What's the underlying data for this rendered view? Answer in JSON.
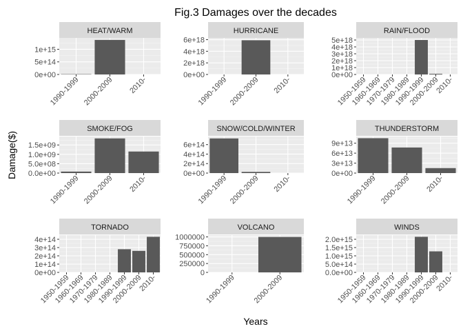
{
  "chart_data": {
    "type": "bar",
    "title": "Fig.3 Damages over the decades",
    "xlabel": "Years",
    "ylabel": "Damage($)",
    "grid": true,
    "panels": [
      {
        "name": "HEAT/WARM",
        "categories": [
          "1990-1999",
          "2000-2009",
          "2010-"
        ],
        "values": [
          12000000000000.0,
          1370000000000000.0,
          0
        ],
        "ylim": [
          0,
          1450000000000000.0
        ],
        "y_ticks": [
          0,
          500000000000000.0,
          1000000000000000.0
        ],
        "y_tick_labels": [
          "0e+00",
          "5e+14",
          "1e+15"
        ]
      },
      {
        "name": "HURRICANE",
        "categories": [
          "1990-1999",
          "2000-2009",
          "2010-"
        ],
        "values": [
          0,
          5.9e+18,
          0
        ],
        "ylim": [
          0,
          6.3e+18
        ],
        "y_ticks": [
          0,
          2e+18,
          4e+18,
          6e+18
        ],
        "y_tick_labels": [
          "0e+00",
          "2e+18",
          "4e+18",
          "6e+18"
        ]
      },
      {
        "name": "RAIN/FLOOD",
        "categories": [
          "1950-1959",
          "1960-1969",
          "1970-1979",
          "1980-1989",
          "1990-1999",
          "2000-2009",
          "2010-"
        ],
        "values": [
          0,
          0,
          0,
          0,
          5e+18,
          1e+17,
          0
        ],
        "ylim": [
          0,
          5.3e+18
        ],
        "y_ticks": [
          0,
          1e+18,
          2e+18,
          3e+18,
          4e+18,
          5e+18
        ],
        "y_tick_labels": [
          "0e+00",
          "1e+18",
          "2e+18",
          "3e+18",
          "4e+18",
          "5e+18"
        ]
      },
      {
        "name": "SMOKE/FOG",
        "categories": [
          "1990-1999",
          "2000-2009",
          "2010-"
        ],
        "values": [
          80000000.0,
          1850000000.0,
          1150000000.0
        ],
        "ylim": [
          0,
          1950000000.0
        ],
        "y_ticks": [
          0,
          500000000.0,
          1000000000.0,
          1500000000.0
        ],
        "y_tick_labels": [
          "0.0e+00",
          "5.0e+08",
          "1.0e+09",
          "1.5e+09"
        ]
      },
      {
        "name": "SNOW/COLD/WINTER",
        "categories": [
          "1990-1999",
          "2000-2009",
          "2010-"
        ],
        "values": [
          730000000000000.0,
          25000000000000.0,
          0
        ],
        "ylim": [
          0,
          770000000000000.0
        ],
        "y_ticks": [
          0,
          200000000000000.0,
          400000000000000.0,
          600000000000000.0
        ],
        "y_tick_labels": [
          "0e+00",
          "2e+14",
          "4e+14",
          "6e+14"
        ]
      },
      {
        "name": "THUNDERSTORM",
        "categories": [
          "1990-1999",
          "2000-2009",
          "2010-"
        ],
        "values": [
          105000000000000.0,
          77000000000000.0,
          15000000000000.0
        ],
        "ylim": [
          0,
          110000000000000.0
        ],
        "y_ticks": [
          0,
          30000000000000.0,
          60000000000000.0,
          90000000000000.0
        ],
        "y_tick_labels": [
          "0e+00",
          "3e+13",
          "6e+13",
          "9e+13"
        ]
      },
      {
        "name": "TORNADO",
        "categories": [
          "1950-1959",
          "1960-1969",
          "1970-1979",
          "1980-1989",
          "1990-1999",
          "2000-2009",
          "2010-"
        ],
        "values": [
          0,
          0,
          0,
          0,
          280000000000000.0,
          260000000000000.0,
          430000000000000.0
        ],
        "ylim": [
          0,
          450000000000000.0
        ],
        "y_ticks": [
          0,
          100000000000000.0,
          200000000000000.0,
          300000000000000.0,
          400000000000000.0
        ],
        "y_tick_labels": [
          "0e+00",
          "1e+14",
          "2e+14",
          "3e+14",
          "4e+14"
        ]
      },
      {
        "name": "VOLCANO",
        "categories": [
          "1990-1999",
          "2000-2009"
        ],
        "values": [
          0,
          1000000
        ],
        "ylim": [
          0,
          1050000
        ],
        "y_ticks": [
          0,
          250000,
          500000,
          750000,
          1000000
        ],
        "y_tick_labels": [
          "0",
          "250000",
          "500000",
          "750000",
          "1000000"
        ]
      },
      {
        "name": "WINDS",
        "categories": [
          "1950-1959",
          "1960-1969",
          "1970-1979",
          "1980-1989",
          "1990-1999",
          "2000-2009",
          "2010-"
        ],
        "values": [
          0,
          0,
          0,
          0,
          2150000000000000.0,
          1270000000000000.0,
          0
        ],
        "ylim": [
          0,
          2250000000000000.0
        ],
        "y_ticks": [
          0,
          500000000000000.0,
          1000000000000000.0,
          1500000000000000.0,
          2000000000000000.0
        ],
        "y_tick_labels": [
          "0.0e+00",
          "5.0e+14",
          "1.0e+15",
          "1.5e+15",
          "2.0e+15"
        ]
      }
    ]
  }
}
